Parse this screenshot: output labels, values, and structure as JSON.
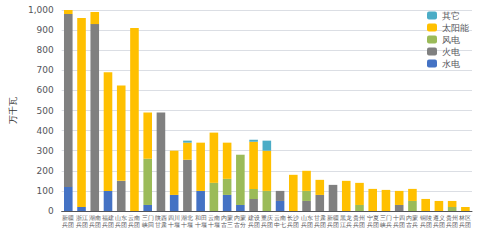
{
  "chart_data": {
    "type": "bar",
    "ylabel": "万千瓦",
    "categories": [
      "新疆\n兵团",
      "浙江\n兵团",
      "湖南\n兵团",
      "福建\n兵团",
      "山东\n兵团",
      "云南\n兵团",
      "三门\n峡回",
      "陕西\n甘肃",
      "四川\n十堰",
      "湖北\n十堰",
      "和田\n十堰",
      "云南\n十堰",
      "内蒙\n古三",
      "内蒙\n古分",
      "建设\n兵团",
      "重庆\n兵团",
      "云南\n中七",
      "长沙\n兵团",
      "山东\n兵团",
      "甘肃\n兵团",
      "新疆\n兵团",
      "黑龙\n江兵",
      "贵州\n兵团",
      "宁夏\n兵团",
      "三门\n峡兵",
      "十四\n兵团",
      "内蒙\n古兵",
      "铜陵\n兵团",
      "遵义\n兵团",
      "贵州\n兵团",
      "林区\n兵团"
    ],
    "series": [
      {
        "name": "水电",
        "color": "#4472C4",
        "values": [
          120,
          20,
          0,
          100,
          0,
          0,
          30,
          0,
          80,
          0,
          100,
          0,
          80,
          30,
          0,
          0,
          50,
          0,
          0,
          0,
          0,
          0,
          0,
          0,
          0,
          0,
          0,
          0,
          0,
          0,
          0
        ]
      },
      {
        "name": "火电",
        "color": "#808080",
        "values": [
          860,
          0,
          930,
          0,
          150,
          0,
          0,
          490,
          0,
          255,
          0,
          0,
          0,
          0,
          60,
          0,
          50,
          0,
          50,
          80,
          130,
          0,
          0,
          0,
          0,
          30,
          0,
          0,
          0,
          0,
          0
        ]
      },
      {
        "name": "风电",
        "color": "#9BBB59",
        "values": [
          0,
          0,
          0,
          0,
          0,
          0,
          230,
          0,
          0,
          0,
          0,
          140,
          80,
          250,
          50,
          100,
          0,
          0,
          50,
          0,
          0,
          0,
          30,
          0,
          0,
          0,
          50,
          0,
          0,
          20,
          0
        ]
      },
      {
        "name": "太阳能",
        "color": "#FFC000",
        "values": [
          20,
          940,
          60,
          590,
          475,
          910,
          230,
          0,
          220,
          85,
          240,
          250,
          180,
          0,
          235,
          200,
          0,
          180,
          100,
          75,
          0,
          150,
          110,
          110,
          105,
          70,
          60,
          60,
          50,
          30,
          20
        ]
      },
      {
        "name": "其它",
        "color": "#4BACC6",
        "values": [
          0,
          0,
          0,
          0,
          0,
          0,
          0,
          0,
          0,
          10,
          0,
          0,
          0,
          0,
          10,
          50,
          0,
          0,
          0,
          0,
          0,
          0,
          0,
          0,
          0,
          0,
          0,
          0,
          0,
          0,
          0
        ]
      }
    ],
    "ylim": [
      0,
      1000
    ],
    "yticks": [
      0,
      100,
      200,
      300,
      400,
      500,
      600,
      700,
      800,
      900,
      1000
    ],
    "grid": true,
    "legend": "upper right",
    "stacked": true
  }
}
